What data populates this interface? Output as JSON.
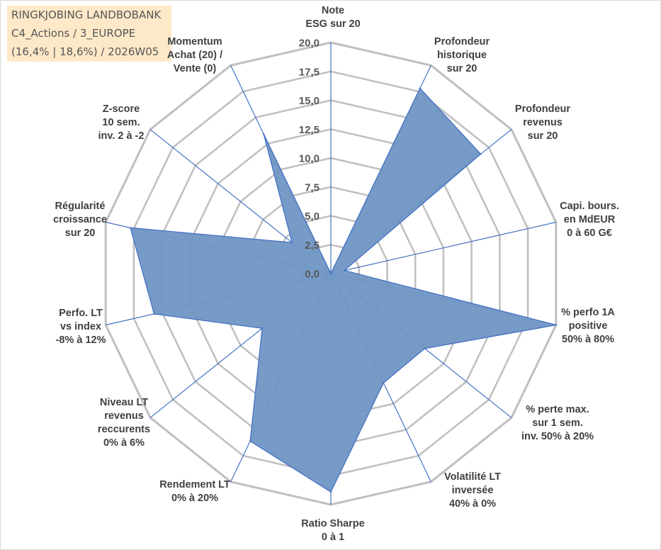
{
  "header": {
    "line1": "RINGKJOBING LANDBOBANK",
    "line2": "C4_Actions / 3_EUROPE",
    "line3": "(16,4% | 18,6%) / 2026W05"
  },
  "chart_data": {
    "type": "radar",
    "rmin": 0,
    "rmax": 20,
    "tick_step": 2.5,
    "tick_labels": [
      "0,0",
      "2,5",
      "5,0",
      "7,5",
      "10,0",
      "12,5",
      "15,0",
      "17,5",
      "20,0"
    ],
    "axes": [
      [
        "Note",
        "ESG sur 20"
      ],
      [
        "Profondeur",
        "historique",
        "sur 20"
      ],
      [
        "Profondeur",
        "revenus",
        "sur 20"
      ],
      [
        "Capi. bours.",
        "en MdEUR",
        "0 à 60 G€"
      ],
      [
        "% perfo 1A",
        "positive",
        "50% à 80%"
      ],
      [
        "% perte max.",
        "sur 1 sem.",
        "inv. 50% à 20%"
      ],
      [
        "Volatilité LT",
        "inversée",
        "40% à 0%"
      ],
      [
        "Ratio Sharpe",
        "0 à 1"
      ],
      [
        "Rendement LT",
        "0% à 20%"
      ],
      [
        "Niveau LT",
        "revenus",
        "reccurents",
        "0% à 6%"
      ],
      [
        "Perfo. LT",
        "vs index",
        "-8% à 12%"
      ],
      [
        "Régularité",
        "croissance",
        "sur 20"
      ],
      [
        "Z-score",
        "10 sem.",
        "inv. 2 à -2"
      ],
      [
        "Momentum",
        "Achat (20) /",
        "Vente (0)"
      ]
    ],
    "series": [
      {
        "values": [
          0,
          17.8,
          16.6,
          1.2,
          20,
          10.4,
          10.5,
          18.9,
          16.1,
          7.6,
          15.7,
          17.8,
          4.3,
          13.4
        ]
      }
    ],
    "fill_color": "#7096c4",
    "line_color": "#4472c4",
    "grid_color": "#bfbfbf",
    "spoke_color": "#4472c4"
  }
}
